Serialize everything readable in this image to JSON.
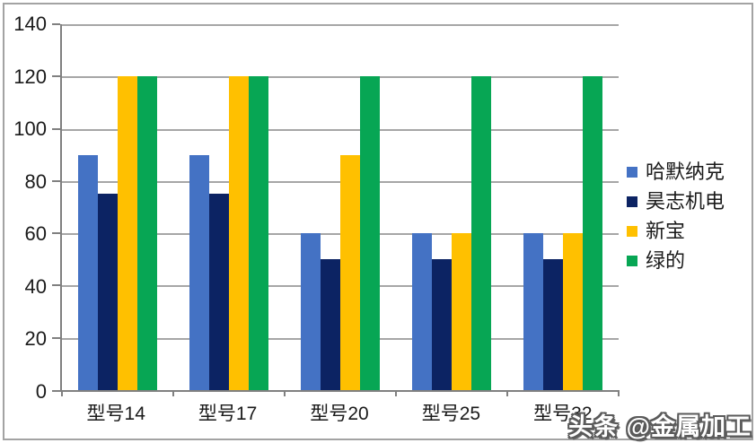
{
  "chart_data": {
    "type": "bar",
    "title": "",
    "xlabel": "",
    "ylabel": "",
    "categories": [
      "型号14",
      "型号17",
      "型号20",
      "型号25",
      "型号32"
    ],
    "series": [
      {
        "name": "哈默纳克",
        "color": "#4472C4",
        "values": [
          90,
          90,
          60,
          60,
          60
        ]
      },
      {
        "name": "昊志机电",
        "color": "#0C2363",
        "values": [
          75,
          75,
          50,
          50,
          50
        ]
      },
      {
        "name": "新宝",
        "color": "#FFC000",
        "values": [
          120,
          120,
          90,
          60,
          60
        ]
      },
      {
        "name": "绿的",
        "color": "#07A654",
        "values": [
          120,
          120,
          120,
          120,
          120
        ]
      }
    ],
    "ylim": [
      0,
      140
    ],
    "ytick_step": 20,
    "grid": true,
    "legend_position": "right"
  },
  "watermark": {
    "text": "头条 @金属加工"
  }
}
